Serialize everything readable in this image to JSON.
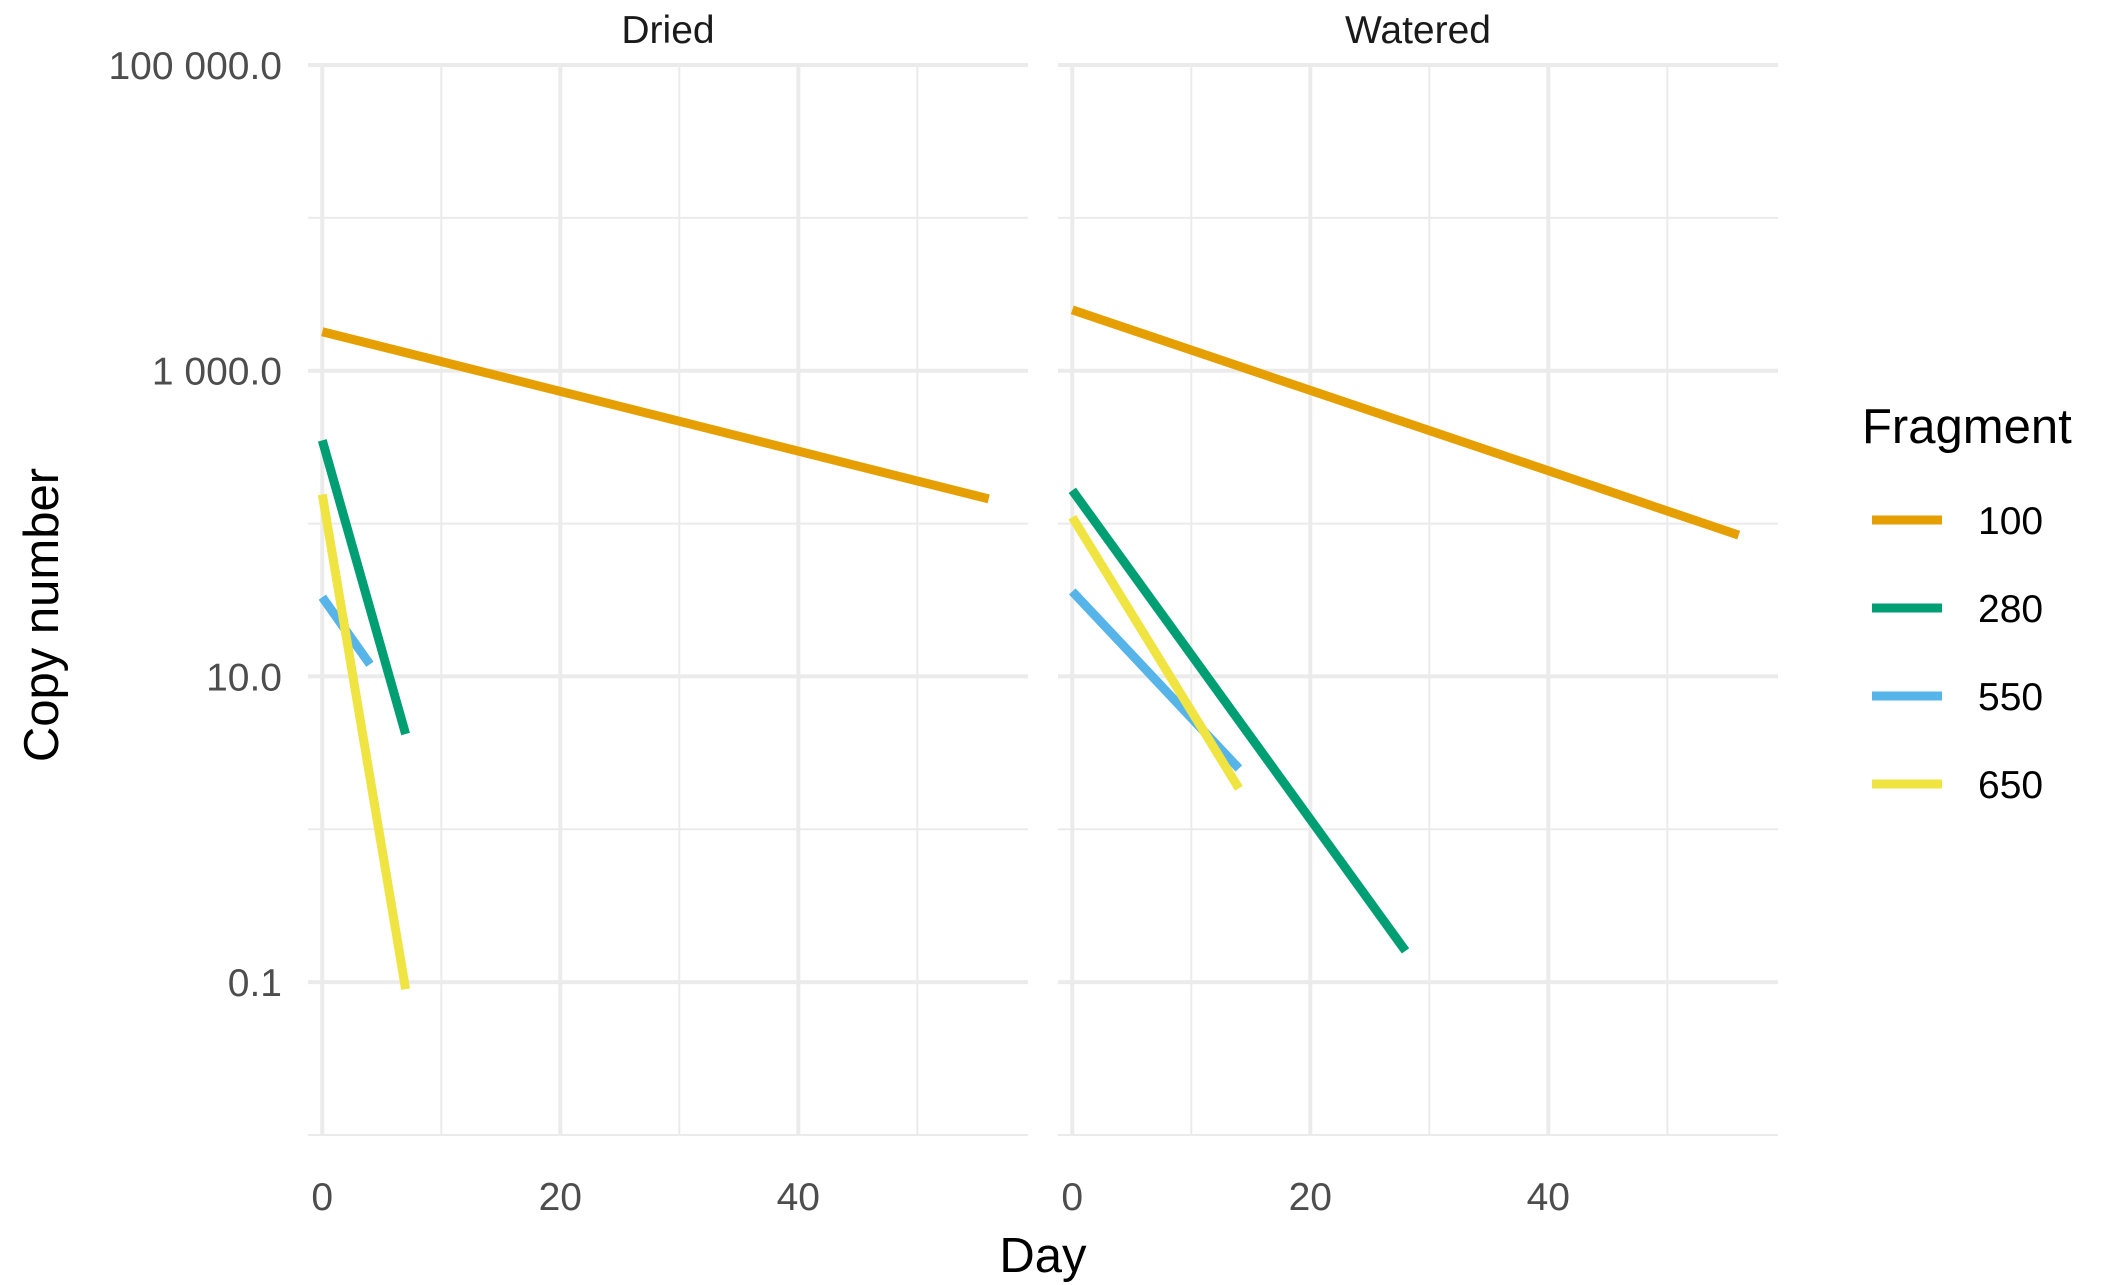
{
  "chart_data": {
    "type": "line",
    "facet_variable": "treatment",
    "panels": [
      {
        "name": "Dried",
        "series": [
          {
            "name": "100",
            "x": [
              0,
              56
            ],
            "y": [
              1800,
              145
            ]
          },
          {
            "name": "280",
            "x": [
              0,
              7
            ],
            "y": [
              350,
              4.2
            ]
          },
          {
            "name": "550",
            "x": [
              0,
              4
            ],
            "y": [
              33,
              12
            ]
          },
          {
            "name": "650",
            "x": [
              0,
              7
            ],
            "y": [
              155,
              0.09
            ]
          }
        ]
      },
      {
        "name": "Watered",
        "series": [
          {
            "name": "100",
            "x": [
              0,
              56
            ],
            "y": [
              2500,
              84
            ]
          },
          {
            "name": "280",
            "x": [
              0,
              28
            ],
            "y": [
              165,
              0.16
            ]
          },
          {
            "name": "550",
            "x": [
              0,
              14
            ],
            "y": [
              36,
              2.5
            ]
          },
          {
            "name": "650",
            "x": [
              0,
              14
            ],
            "y": [
              110,
              1.85
            ]
          }
        ]
      }
    ],
    "xlabel": "Day",
    "ylabel": "Copy number",
    "x_scale": "linear",
    "x_lim": [
      -1.2,
      59.3
    ],
    "x_ticks": [
      0,
      20,
      40
    ],
    "x_tick_labels": [
      "0",
      "20",
      "40"
    ],
    "y_scale": "log10",
    "y_lim": [
      0.01,
      100000
    ],
    "y_ticks": [
      0.1,
      10,
      1000,
      100000
    ],
    "y_tick_labels": [
      "0.1",
      "10.0",
      "1 000.0",
      "100 000.0"
    ],
    "grid": true,
    "legend": {
      "title": "Fragment",
      "position": "right",
      "entries": [
        "100",
        "280",
        "550",
        "650"
      ]
    },
    "colors": {
      "100": "#E69F00",
      "280": "#009E73",
      "550": "#56B4E9",
      "650": "#F0E442"
    },
    "background": "#ffffff",
    "grid_color": "#ebebeb"
  }
}
